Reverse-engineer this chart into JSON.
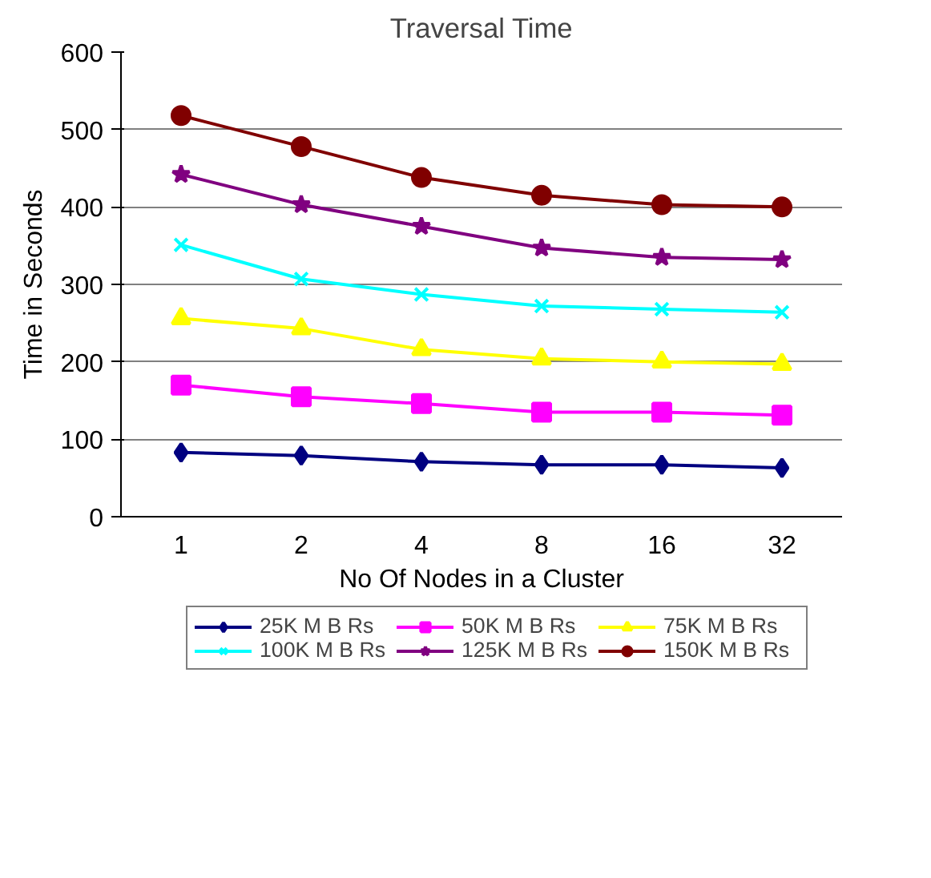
{
  "chart_data": {
    "type": "line",
    "title": "Traversal Time",
    "xlabel": "No Of Nodes in a Cluster",
    "ylabel": "Time in Seconds",
    "categories": [
      "1",
      "2",
      "4",
      "8",
      "16",
      "32"
    ],
    "ylim": [
      0,
      600
    ],
    "yticks": [
      0,
      100,
      200,
      300,
      400,
      500,
      600
    ],
    "grid": "y",
    "legend": "bottom",
    "series": [
      {
        "name": "25K M B Rs",
        "color": "#000080",
        "marker": "diamond",
        "values": [
          83,
          79,
          71,
          67,
          67,
          63
        ]
      },
      {
        "name": "50K M B Rs",
        "color": "#ff00ff",
        "marker": "square",
        "values": [
          170,
          155,
          146,
          135,
          135,
          131
        ]
      },
      {
        "name": "75K M B Rs",
        "color": "#ffff00",
        "marker": "triangle",
        "values": [
          256,
          243,
          216,
          204,
          200,
          197
        ]
      },
      {
        "name": "100K M B Rs",
        "color": "#00ffff",
        "marker": "cross",
        "values": [
          351,
          307,
          287,
          272,
          268,
          264
        ]
      },
      {
        "name": "125K M B Rs",
        "color": "#800080",
        "marker": "star",
        "values": [
          442,
          403,
          375,
          347,
          335,
          332
        ]
      },
      {
        "name": "150K M B Rs",
        "color": "#800000",
        "marker": "circle",
        "values": [
          518,
          478,
          438,
          415,
          403,
          400
        ]
      }
    ]
  }
}
